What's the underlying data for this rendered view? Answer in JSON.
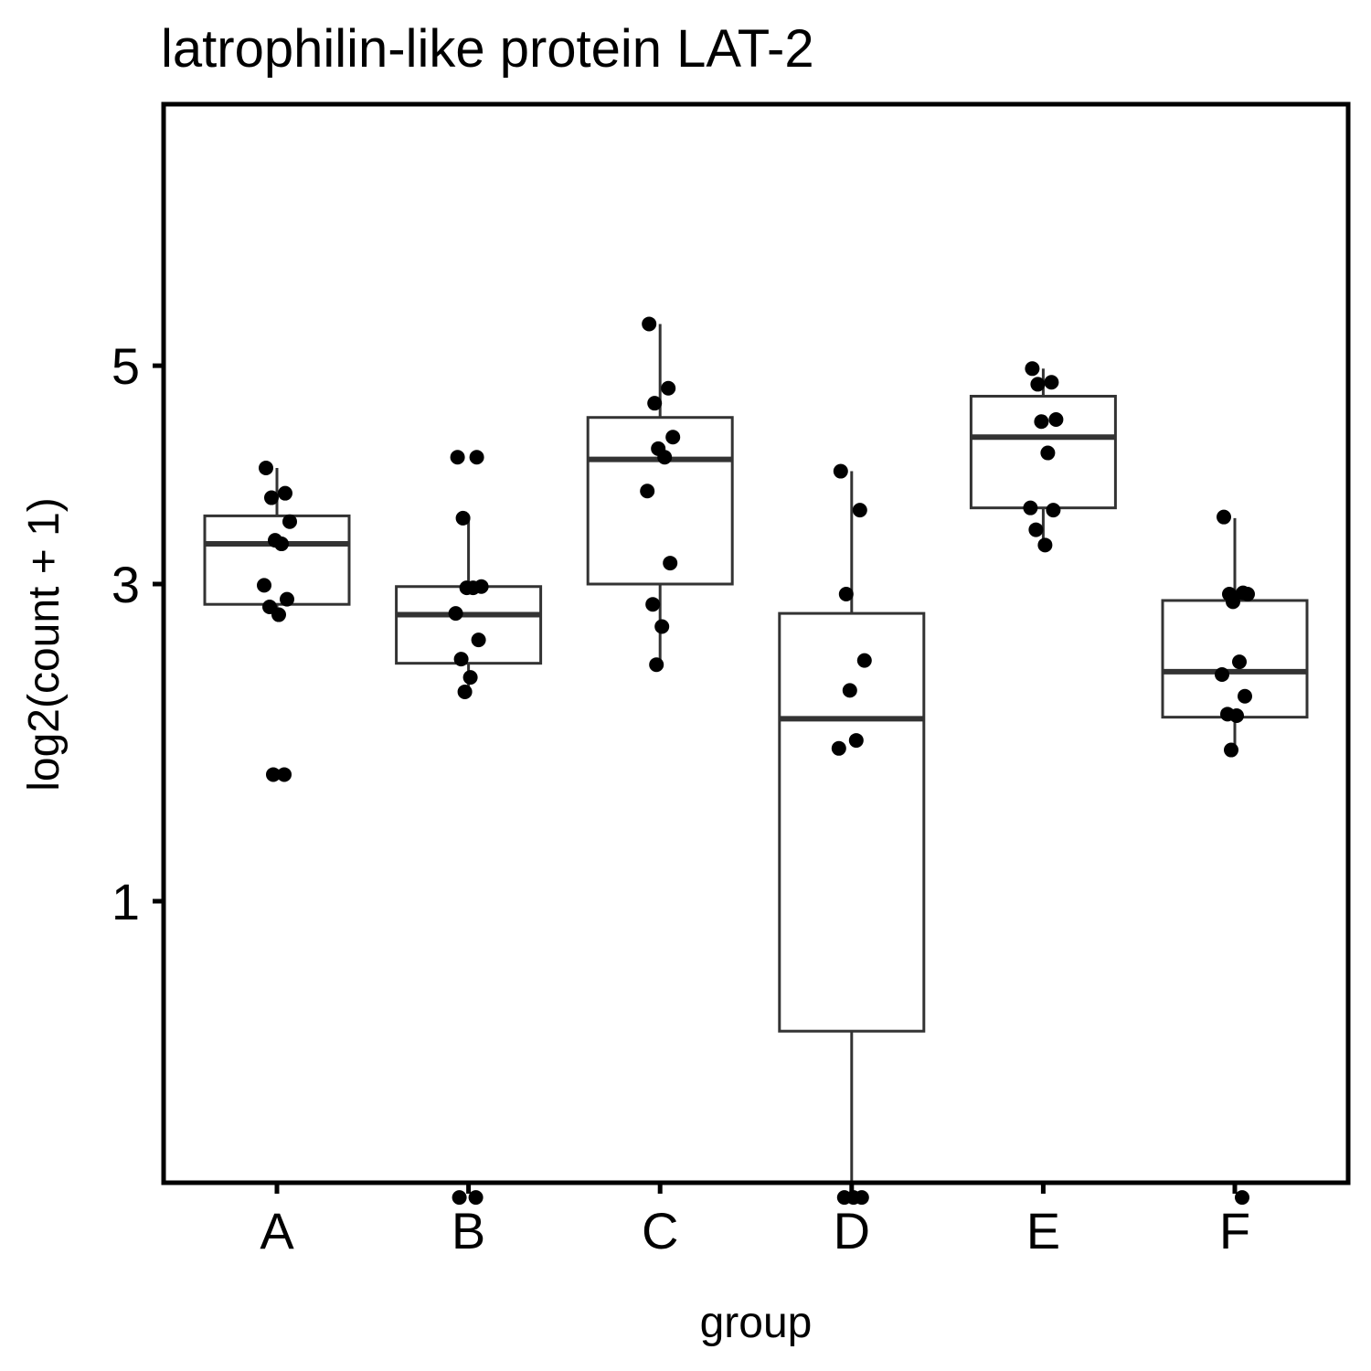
{
  "chart_data": {
    "type": "box",
    "title": "latrophilin-like protein LAT-2",
    "xlabel": "group",
    "ylabel": "log2(count + 1)",
    "y_scale": "sqrt",
    "ylim": [
      0,
      5.6
    ],
    "yticks": [
      1,
      3,
      5
    ],
    "categories": [
      "A",
      "B",
      "C",
      "D",
      "E",
      "F"
    ],
    "boxes": [
      {
        "category": "A",
        "lower_whisker": 2.73,
        "q1": 2.84,
        "median": 3.33,
        "q3": 3.57,
        "upper_whisker": 4.0
      },
      {
        "category": "B",
        "lower_whisker": 2.23,
        "q1": 2.4,
        "median": 2.76,
        "q3": 2.98,
        "upper_whisker": 3.55
      },
      {
        "category": "C",
        "lower_whisker": 2.39,
        "q1": 3.0,
        "median": 4.08,
        "q3": 4.48,
        "upper_whisker": 5.44
      },
      {
        "category": "D",
        "lower_whisker": 0.1,
        "q1": 0.49,
        "median": 2.02,
        "q3": 2.77,
        "upper_whisker": 3.97
      },
      {
        "category": "E",
        "lower_whisker": 3.32,
        "q1": 3.64,
        "median": 4.29,
        "q3": 4.69,
        "upper_whisker": 4.97
      },
      {
        "category": "F",
        "lower_whisker": 1.81,
        "q1": 2.03,
        "median": 2.34,
        "q3": 2.87,
        "upper_whisker": 3.55
      }
    ],
    "points": [
      {
        "category": "A",
        "values": [
          4.0,
          3.77,
          3.73,
          3.52,
          3.36,
          3.33,
          2.99,
          2.88,
          2.82,
          2.76,
          1.67,
          1.67
        ]
      },
      {
        "category": "B",
        "values": [
          4.1,
          4.1,
          3.55,
          2.98,
          2.97,
          2.97,
          2.77,
          2.57,
          2.43,
          2.3,
          2.2,
          0.1,
          0.1
        ]
      },
      {
        "category": "C",
        "values": [
          5.44,
          4.77,
          4.62,
          4.29,
          4.18,
          4.1,
          3.79,
          3.17,
          2.84,
          2.67,
          2.39
        ]
      },
      {
        "category": "D",
        "values": [
          3.97,
          3.62,
          2.92,
          2.42,
          2.21,
          1.88,
          1.83,
          0.1,
          0.1,
          0.1
        ]
      },
      {
        "category": "E",
        "values": [
          4.97,
          4.83,
          4.81,
          4.46,
          4.44,
          4.14,
          3.64,
          3.62,
          3.45,
          3.32
        ]
      },
      {
        "category": "F",
        "values": [
          3.56,
          2.93,
          2.92,
          2.92,
          2.86,
          2.41,
          2.32,
          2.17,
          2.05,
          2.04,
          1.82,
          0.1
        ]
      }
    ],
    "grid": false,
    "legend": "none",
    "colors": {
      "box_stroke": "#333333",
      "point": "#000000",
      "panel": "#000000",
      "background": "#ffffff"
    }
  }
}
